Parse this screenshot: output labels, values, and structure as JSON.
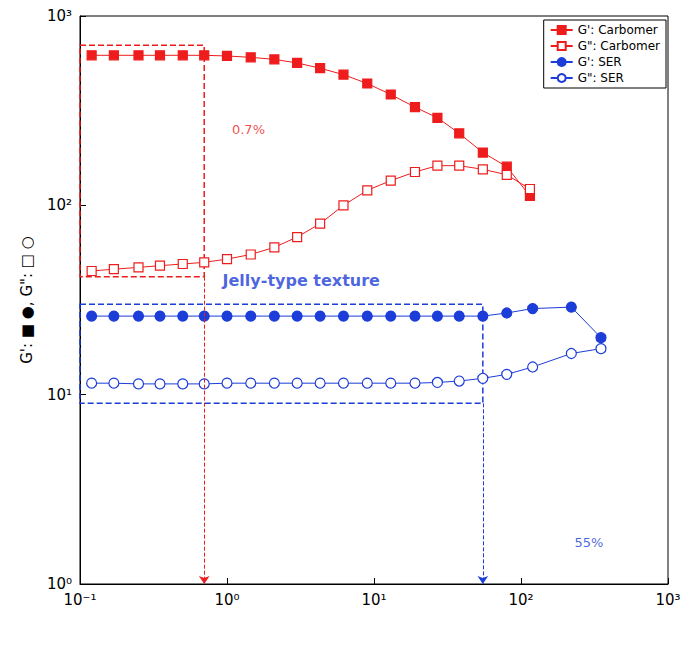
{
  "chart_data": {
    "type": "line",
    "ylabel": "G': ■ ●, G\": □ ○",
    "log": true,
    "grid": false,
    "legend": "top-right",
    "xlim": [
      0.1,
      1000
    ],
    "ylim": [
      1,
      1000
    ],
    "xticks": [
      {
        "value": 0.1,
        "label": "10⁻¹"
      },
      {
        "value": 1,
        "label": "10⁰"
      },
      {
        "value": 10,
        "label": "10¹"
      },
      {
        "value": 100,
        "label": "10²"
      },
      {
        "value": 1000,
        "label": "10³"
      }
    ],
    "yticks": [
      {
        "value": 1,
        "label": "10⁰"
      },
      {
        "value": 10,
        "label": "10¹"
      },
      {
        "value": 100,
        "label": "10²"
      },
      {
        "value": 1000,
        "label": "10³"
      }
    ],
    "series": [
      {
        "name": "G': Carbomer",
        "color": "#ee1c1c",
        "marker": "filled_square",
        "line_style": "solid",
        "x": [
          0.12,
          0.17,
          0.25,
          0.35,
          0.5,
          0.7,
          1.0,
          1.45,
          2.1,
          3,
          4.3,
          6.2,
          9,
          13,
          19,
          27,
          38,
          55,
          80,
          115
        ],
        "values": [
          620,
          620,
          620,
          620,
          620,
          620,
          615,
          605,
          590,
          565,
          530,
          490,
          440,
          385,
          330,
          290,
          240,
          190,
          160,
          112
        ]
      },
      {
        "name": "G\": Carbomer",
        "color": "#ee1c1c",
        "marker": "open_square",
        "line_style": "solid",
        "x": [
          0.12,
          0.17,
          0.25,
          0.35,
          0.5,
          0.7,
          1.0,
          1.45,
          2.1,
          3,
          4.3,
          6.2,
          9,
          13,
          19,
          27,
          38,
          55,
          80,
          115
        ],
        "values": [
          45,
          46,
          47,
          48,
          49,
          50,
          52,
          55,
          60,
          68,
          80,
          100,
          120,
          135,
          150,
          162,
          162,
          155,
          145,
          122
        ]
      },
      {
        "name": "G': SER",
        "color": "#1c3dd8",
        "marker": "filled_circle",
        "line_style": "solid",
        "x": [
          0.12,
          0.17,
          0.25,
          0.35,
          0.5,
          0.7,
          1.0,
          1.45,
          2.1,
          3,
          4.3,
          6.2,
          9,
          13,
          19,
          27,
          38,
          55,
          80,
          120,
          220,
          350
        ],
        "values": [
          26,
          26,
          26,
          26,
          26,
          26,
          26,
          26,
          26,
          26,
          26,
          26,
          26,
          26,
          26,
          26,
          26,
          26,
          27,
          28.5,
          29,
          20
        ]
      },
      {
        "name": "G\": SER",
        "color": "#1c3dd8",
        "marker": "open_circle",
        "line_style": "solid",
        "x": [
          0.12,
          0.17,
          0.25,
          0.35,
          0.5,
          0.7,
          1.0,
          1.45,
          2.1,
          3,
          4.3,
          6.2,
          9,
          13,
          19,
          27,
          38,
          55,
          80,
          120,
          220,
          350
        ],
        "values": [
          11.5,
          11.5,
          11.4,
          11.4,
          11.4,
          11.4,
          11.5,
          11.5,
          11.5,
          11.5,
          11.5,
          11.5,
          11.5,
          11.5,
          11.5,
          11.6,
          11.8,
          12.2,
          12.8,
          14,
          16.5,
          17.5
        ]
      }
    ],
    "regions": [
      {
        "x": [
          0.1,
          0.7
        ],
        "y": [
          42,
          700
        ],
        "color": "#ee1c1c"
      },
      {
        "x": [
          0.1,
          55
        ],
        "y": [
          9,
          30
        ],
        "color": "#1c3dd8"
      }
    ],
    "annotations": [
      {
        "text": "0.7%",
        "x": 1.4,
        "y": 250,
        "color": "#ee1c1c"
      },
      {
        "text": "Jelly-type texture",
        "x": 3.2,
        "y": 40,
        "color": "#1c3dd8"
      },
      {
        "text": "55%",
        "x": 290,
        "y": 1.65,
        "color": "#1c3dd8"
      }
    ]
  }
}
